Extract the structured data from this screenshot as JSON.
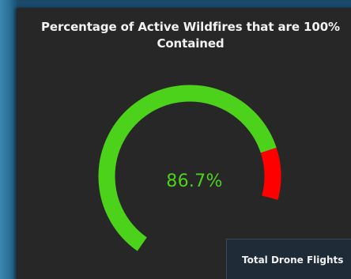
{
  "gauge_card": {
    "title": "Percentage of Active Wildfires that are 100% Contained",
    "value_text": "86.7%",
    "value": 86.7,
    "colors": {
      "filled": "#4cd21b",
      "remaining": "#ff0000",
      "value_text": "#4cd21b"
    }
  },
  "secondary_card": {
    "title": "Total Drone Flights"
  }
}
